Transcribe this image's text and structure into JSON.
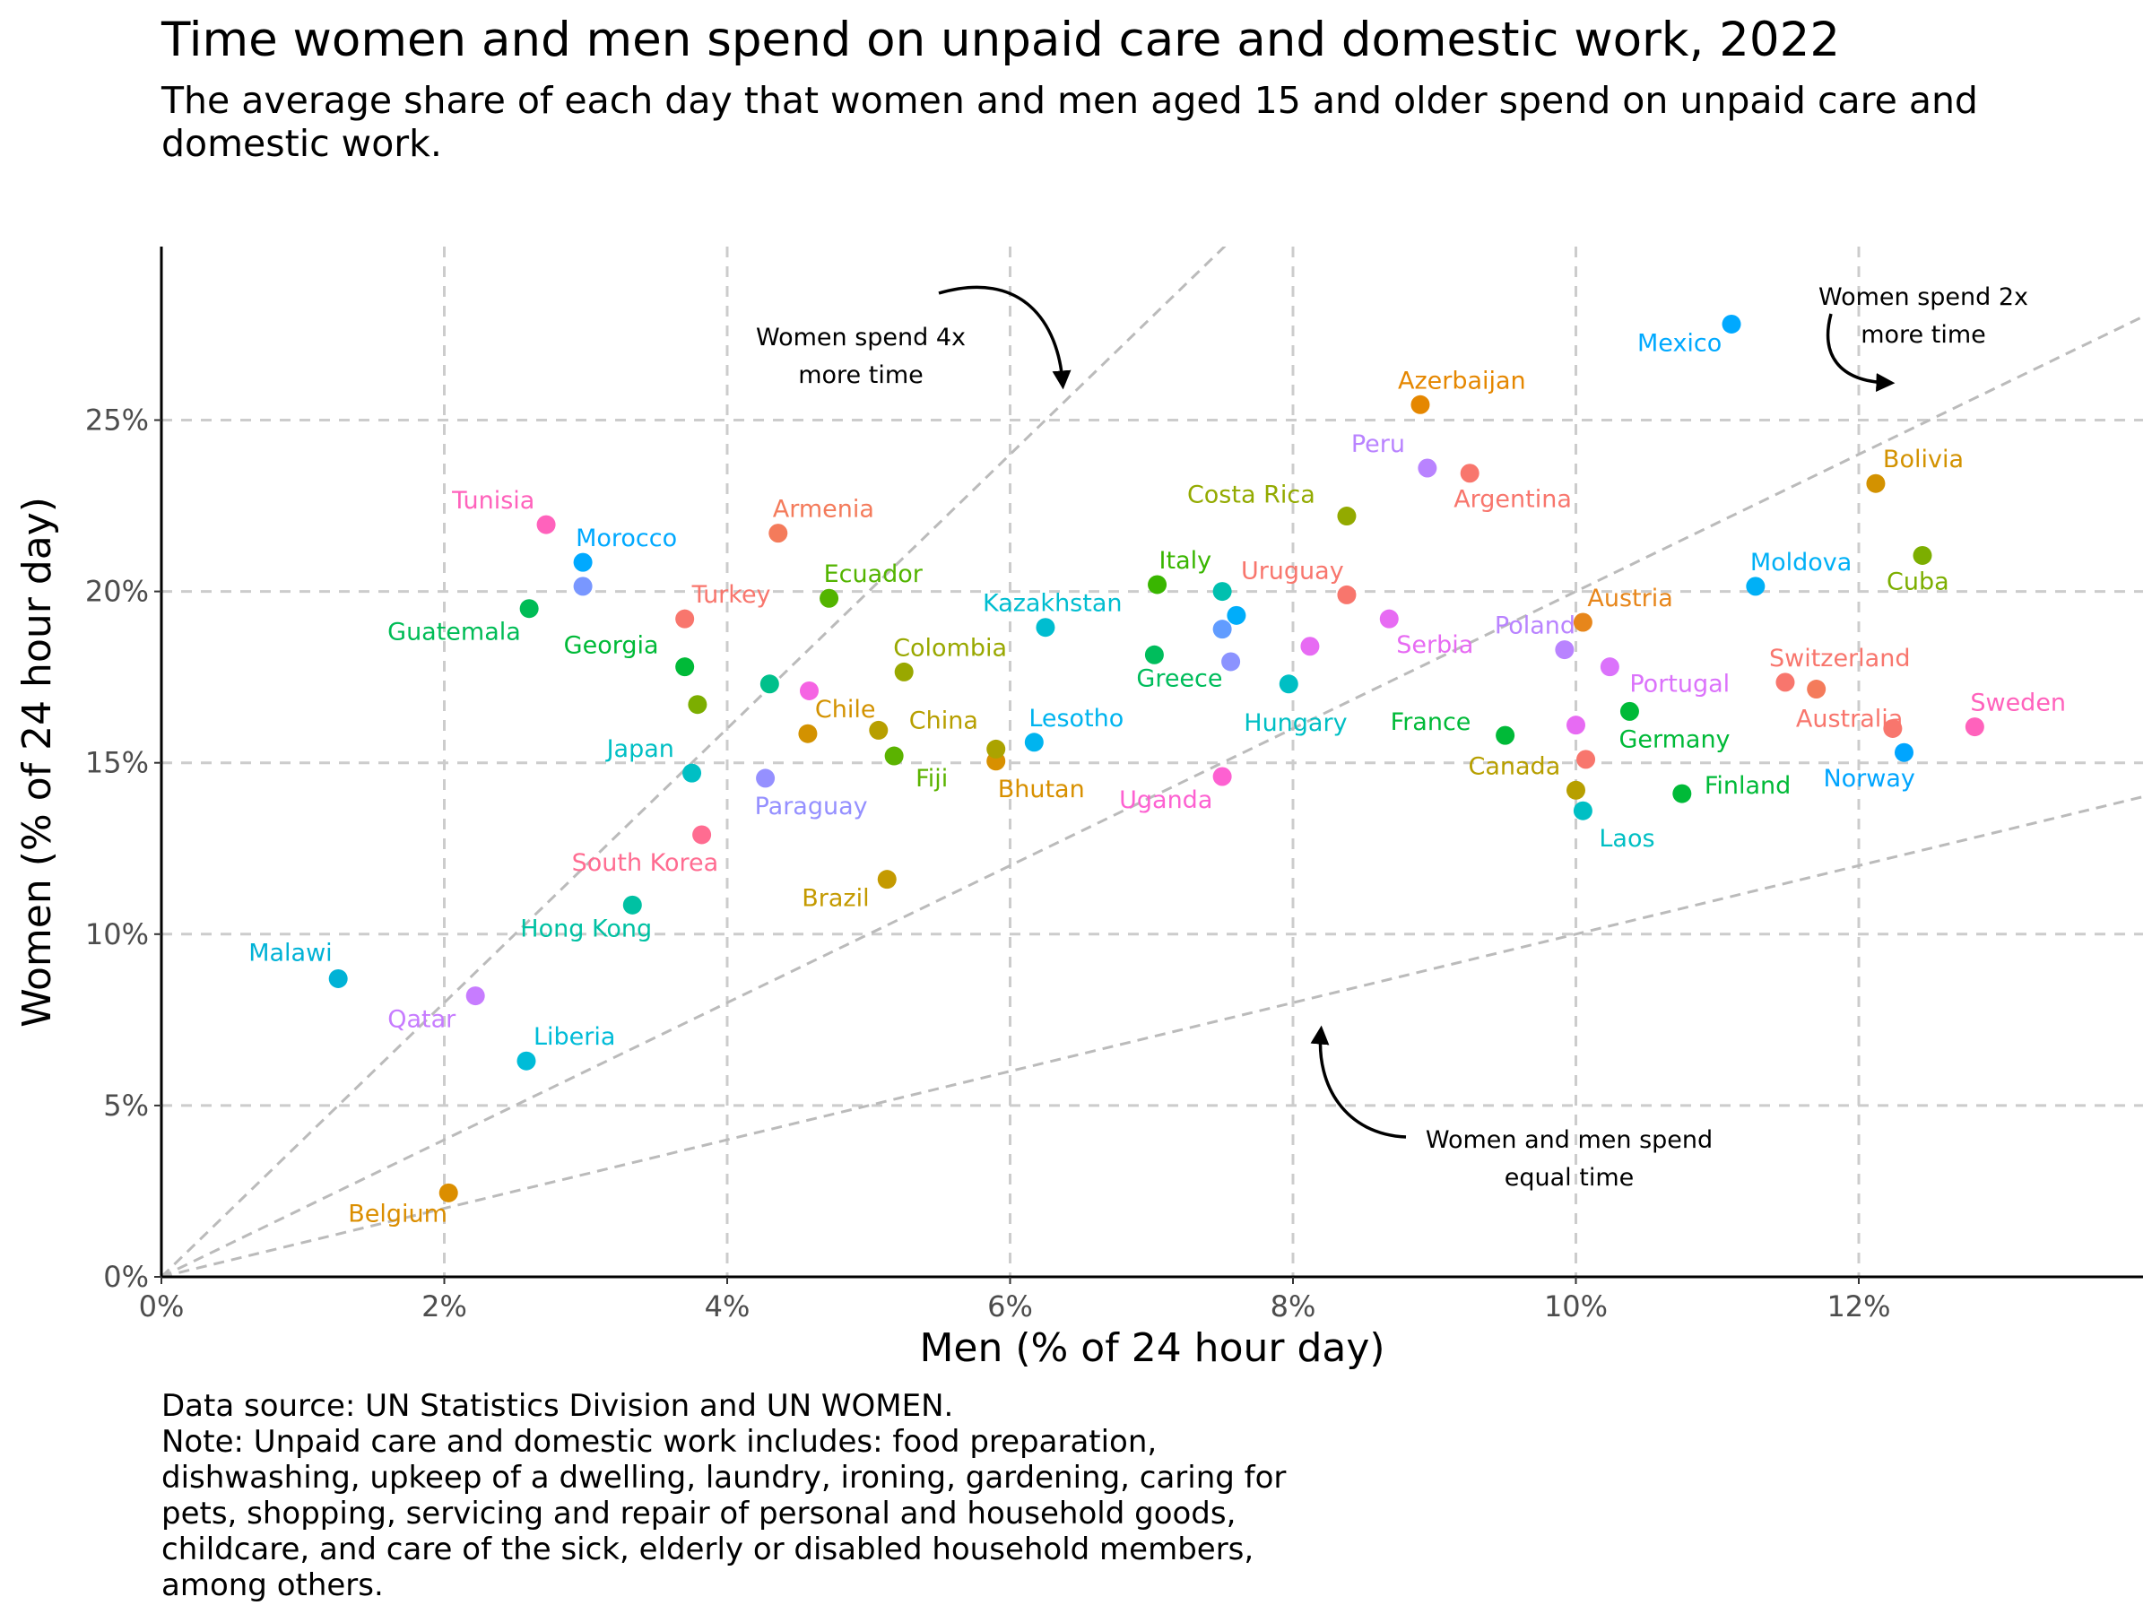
{
  "title": "Time women and men spend on unpaid care and domestic work, 2022",
  "subtitle": "The average share of each day that women and men aged 15 and older spend on unpaid care and domestic work.",
  "caption": {
    "source": "Data source: UN Statistics Division and UN WOMEN.",
    "note": "Note: Unpaid care and domestic work includes: food preparation, dishwashing, upkeep of a dwelling, laundry, ironing, gardening, caring for pets, shopping, servicing and repair of personal and household goods, childcare, and care of the sick, elderly or disabled household members, among others."
  },
  "chart_data": {
    "type": "scatter",
    "xlabel": "Men (% of 24 hour day)",
    "ylabel": "Women (% of 24 hour day)",
    "xlim": [
      0,
      14
    ],
    "ylim": [
      0,
      30
    ],
    "x_ticks": [
      0,
      2,
      4,
      6,
      8,
      10,
      12
    ],
    "x_tick_labels": [
      "0%",
      "2%",
      "4%",
      "6%",
      "8%",
      "10%",
      "12%"
    ],
    "y_ticks": [
      0,
      5,
      10,
      15,
      20,
      25
    ],
    "y_tick_labels": [
      "0%",
      "5%",
      "10%",
      "15%",
      "20%",
      "25%"
    ],
    "grid": true,
    "reference_lines": [
      {
        "ratio": 4
      },
      {
        "ratio": 2
      },
      {
        "ratio": 1
      }
    ],
    "annotations": [
      {
        "text": [
          "Women spend 4x",
          "more time"
        ],
        "x": 5.0,
        "y": 27.0
      },
      {
        "text": [
          "Women spend 2x",
          "more time"
        ],
        "x": 12.5,
        "y": 28.2
      },
      {
        "text": [
          "Women and men spend",
          "equal time"
        ],
        "x": 10.0,
        "y": 3.9
      }
    ],
    "points": [
      {
        "country": "Malawi",
        "x": 1.25,
        "y": 8.7,
        "color": "#00B2D6"
      },
      {
        "country": "Belgium",
        "x": 2.03,
        "y": 2.45,
        "color": "#DB8E00"
      },
      {
        "country": "Qatar",
        "x": 2.22,
        "y": 8.2,
        "color": "#C77CFF"
      },
      {
        "country": "Liberia",
        "x": 2.58,
        "y": 6.3,
        "color": "#00BCD8"
      },
      {
        "country": "Guatemala",
        "x": 2.6,
        "y": 19.5,
        "color": "#00BC56"
      },
      {
        "country": "Tunisia",
        "x": 2.72,
        "y": 21.95,
        "color": "#FF62BC"
      },
      {
        "country": "Morocco",
        "x": 2.98,
        "y": 20.85,
        "color": "#00A9FF"
      },
      {
        "country": "",
        "x": 2.98,
        "y": 20.15,
        "color": "#7997FF"
      },
      {
        "country": "Hong Kong",
        "x": 3.33,
        "y": 10.85,
        "color": "#00C1A3"
      },
      {
        "country": "Turkey",
        "x": 3.7,
        "y": 19.2,
        "color": "#F8766D"
      },
      {
        "country": "Georgia",
        "x": 3.7,
        "y": 17.8,
        "color": "#00BA38"
      },
      {
        "country": "",
        "x": 3.79,
        "y": 16.7,
        "color": "#7CAE00"
      },
      {
        "country": "Japan",
        "x": 3.75,
        "y": 14.7,
        "color": "#00BFC4"
      },
      {
        "country": "South Korea",
        "x": 3.82,
        "y": 12.9,
        "color": "#FF6C91"
      },
      {
        "country": "Paraguay",
        "x": 4.27,
        "y": 14.55,
        "color": "#9590FF"
      },
      {
        "country": "",
        "x": 4.3,
        "y": 17.3,
        "color": "#00C08B"
      },
      {
        "country": "Armenia",
        "x": 4.36,
        "y": 21.7,
        "color": "#F47B5B"
      },
      {
        "country": "",
        "x": 4.58,
        "y": 17.1,
        "color": "#F564E3"
      },
      {
        "country": "Chile",
        "x": 4.57,
        "y": 15.85,
        "color": "#D39200"
      },
      {
        "country": "Ecuador",
        "x": 4.72,
        "y": 19.8,
        "color": "#53B400"
      },
      {
        "country": "China",
        "x": 5.07,
        "y": 15.95,
        "color": "#B79F00"
      },
      {
        "country": "Brazil",
        "x": 5.13,
        "y": 11.6,
        "color": "#C49A00"
      },
      {
        "country": "Fiji",
        "x": 5.18,
        "y": 15.2,
        "color": "#5BB300"
      },
      {
        "country": "Colombia",
        "x": 5.25,
        "y": 17.65,
        "color": "#99A800"
      },
      {
        "country": "Bhutan",
        "x": 5.9,
        "y": 15.05,
        "color": "#D89000"
      },
      {
        "country": "",
        "x": 5.9,
        "y": 15.4,
        "color": "#ABA300"
      },
      {
        "country": "Lesotho",
        "x": 6.17,
        "y": 15.6,
        "color": "#00B4EF"
      },
      {
        "country": "Kazakhstan",
        "x": 6.25,
        "y": 18.95,
        "color": "#00BDD0"
      },
      {
        "country": "Greece",
        "x": 7.02,
        "y": 18.15,
        "color": "#00BD5C"
      },
      {
        "country": "Italy",
        "x": 7.04,
        "y": 20.2,
        "color": "#39B600"
      },
      {
        "country": "Uganda",
        "x": 7.5,
        "y": 14.6,
        "color": "#FD61D1"
      },
      {
        "country": "",
        "x": 7.5,
        "y": 20.0,
        "color": "#00C0AF"
      },
      {
        "country": "",
        "x": 7.5,
        "y": 18.9,
        "color": "#619CFF"
      },
      {
        "country": "",
        "x": 7.6,
        "y": 19.3,
        "color": "#00ADFA"
      },
      {
        "country": "",
        "x": 7.56,
        "y": 17.95,
        "color": "#8B93FF"
      },
      {
        "country": "Hungary",
        "x": 7.97,
        "y": 17.3,
        "color": "#00BFC4"
      },
      {
        "country": "",
        "x": 8.12,
        "y": 18.4,
        "color": "#E76BF3"
      },
      {
        "country": "Uruguay",
        "x": 8.38,
        "y": 19.9,
        "color": "#F8766D"
      },
      {
        "country": "Costa Rica",
        "x": 8.38,
        "y": 22.2,
        "color": "#93AA00"
      },
      {
        "country": "Serbia",
        "x": 8.68,
        "y": 19.2,
        "color": "#E76BF3"
      },
      {
        "country": "Azerbaijan",
        "x": 8.9,
        "y": 25.45,
        "color": "#E58700"
      },
      {
        "country": "Peru",
        "x": 8.95,
        "y": 23.6,
        "color": "#B983FF"
      },
      {
        "country": "Argentina",
        "x": 9.25,
        "y": 23.45,
        "color": "#F8766D"
      },
      {
        "country": "France",
        "x": 9.5,
        "y": 15.8,
        "color": "#00BA38"
      },
      {
        "country": "Poland",
        "x": 9.92,
        "y": 18.3,
        "color": "#B983FF"
      },
      {
        "country": "",
        "x": 10.0,
        "y": 16.1,
        "color": "#E76BF3"
      },
      {
        "country": "Canada",
        "x": 10.0,
        "y": 14.2,
        "color": "#B79F00"
      },
      {
        "country": "Austria",
        "x": 10.05,
        "y": 19.1,
        "color": "#E7861B"
      },
      {
        "country": "Laos",
        "x": 10.05,
        "y": 13.6,
        "color": "#00BFC4"
      },
      {
        "country": "",
        "x": 10.07,
        "y": 15.1,
        "color": "#F8766D"
      },
      {
        "country": "Portugal",
        "x": 10.24,
        "y": 17.8,
        "color": "#DB72FB"
      },
      {
        "country": "Germany",
        "x": 10.38,
        "y": 16.5,
        "color": "#00BA38"
      },
      {
        "country": "Finland",
        "x": 10.75,
        "y": 14.1,
        "color": "#00BA38"
      },
      {
        "country": "Mexico",
        "x": 11.1,
        "y": 27.8,
        "color": "#00A9FF"
      },
      {
        "country": "Moldova",
        "x": 11.27,
        "y": 20.15,
        "color": "#00B0F6"
      },
      {
        "country": "Switzerland",
        "x": 11.48,
        "y": 17.35,
        "color": "#F8766D"
      },
      {
        "country": "",
        "x": 11.7,
        "y": 17.15,
        "color": "#F47B5B"
      },
      {
        "country": "Bolivia",
        "x": 12.12,
        "y": 23.15,
        "color": "#D39200"
      },
      {
        "country": "Australia",
        "x": 12.24,
        "y": 16.0,
        "color": "#F8766D"
      },
      {
        "country": "Norway",
        "x": 12.32,
        "y": 15.3,
        "color": "#00A5FF"
      },
      {
        "country": "Cuba",
        "x": 12.45,
        "y": 21.05,
        "color": "#7CAE00"
      },
      {
        "country": "Sweden",
        "x": 12.82,
        "y": 16.05,
        "color": "#FF62BC"
      }
    ]
  }
}
